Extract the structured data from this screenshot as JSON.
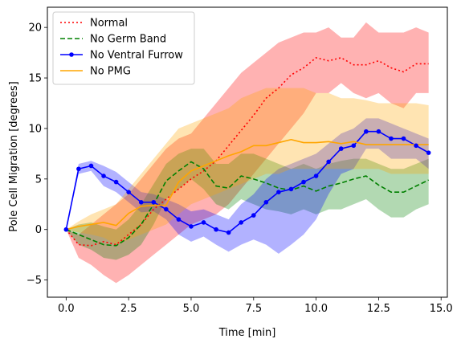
{
  "chart_data": {
    "type": "line",
    "title": "",
    "xlabel": "Time [min]",
    "ylabel": "Pole Cell Migration [degrees]",
    "xlim": [
      -0.75,
      15.25
    ],
    "ylim": [
      -6.7,
      22.0
    ],
    "xticks": [
      0.0,
      2.5,
      5.0,
      7.5,
      10.0,
      12.5,
      15.0
    ],
    "xtick_labels": [
      "0.0",
      "2.5",
      "5.0",
      "7.5",
      "10.0",
      "12.5",
      "15.0"
    ],
    "yticks": [
      -5,
      0,
      5,
      10,
      15,
      20
    ],
    "ytick_labels": [
      "−5",
      "0",
      "5",
      "10",
      "15",
      "20"
    ],
    "x": [
      0,
      0.5,
      1.0,
      1.5,
      2.0,
      2.5,
      3.0,
      3.5,
      4.0,
      4.5,
      5.0,
      5.5,
      6.0,
      6.5,
      7.0,
      7.5,
      8.0,
      8.5,
      9.0,
      9.5,
      10.0,
      10.5,
      11.0,
      11.5,
      12.0,
      12.5,
      13.0,
      13.5,
      14.0,
      14.5
    ],
    "legend_position": "top-left",
    "series": [
      {
        "name": "Normal",
        "color": "#ff0000",
        "style": "dotted",
        "marker": "none",
        "x": [
          0,
          0.5,
          1.0,
          1.5,
          2.0,
          2.5,
          3.0,
          3.5,
          4.0,
          4.5,
          5.0,
          5.5,
          6.0,
          6.5,
          7.0,
          7.5,
          8.0,
          8.5,
          9.0,
          9.5,
          10.0,
          10.5,
          11.0,
          11.5,
          12.0,
          12.5,
          13.0,
          13.5,
          14.0,
          14.5
        ],
        "values": [
          0,
          -1.5,
          -1.6,
          -1.2,
          -1.5,
          -0.5,
          0.5,
          2.0,
          3.0,
          4.0,
          5.0,
          5.8,
          6.8,
          8.3,
          9.8,
          11.3,
          13.0,
          14.0,
          15.3,
          16.0,
          17.0,
          16.7,
          17.0,
          16.3,
          16.3,
          16.7,
          16.0,
          15.6,
          16.4,
          16.4
        ],
        "band_upper": [
          0,
          -0.5,
          0.5,
          1.5,
          2.5,
          3.5,
          5.0,
          6.5,
          8.0,
          9.0,
          9.5,
          11.0,
          12.5,
          14.0,
          15.5,
          16.5,
          17.5,
          18.5,
          19.0,
          19.5,
          19.5,
          20.0,
          19.0,
          19.0,
          20.5,
          19.5,
          19.5,
          19.5,
          20.0,
          19.5
        ],
        "band_lower": [
          0,
          -2.8,
          -3.5,
          -4.5,
          -5.3,
          -4.5,
          -3.5,
          -2.5,
          -1.5,
          -0.5,
          0.5,
          1.0,
          1.5,
          2.5,
          4.0,
          5.5,
          7.0,
          8.5,
          10.0,
          11.5,
          13.5,
          13.5,
          14.5,
          13.5,
          13.0,
          13.5,
          12.5,
          12.0,
          13.5,
          13.5
        ],
        "band_color": "#ff0000",
        "band_opacity": 0.3
      },
      {
        "name": "No Germ Band",
        "color": "#008000",
        "style": "dashed",
        "marker": "none",
        "x": [
          0,
          0.5,
          1.0,
          1.5,
          2.0,
          2.5,
          3.0,
          3.5,
          4.0,
          4.5,
          5.0,
          5.5,
          6.0,
          6.5,
          7.0,
          7.5,
          8.0,
          8.5,
          9.0,
          9.5,
          10.0,
          10.5,
          11.0,
          11.5,
          12.0,
          12.5,
          13.0,
          13.5,
          14.0,
          14.5
        ],
        "values": [
          0,
          -0.5,
          -1.0,
          -1.5,
          -1.6,
          -0.8,
          0.5,
          2.5,
          4.8,
          5.8,
          6.7,
          6.0,
          4.3,
          4.1,
          5.3,
          5.0,
          4.6,
          4.1,
          3.9,
          4.3,
          3.8,
          4.3,
          4.6,
          5.0,
          5.3,
          4.4,
          3.7,
          3.7,
          4.3,
          4.9
        ],
        "band_upper": [
          0,
          0.5,
          0.7,
          0.3,
          0.0,
          1.0,
          2.5,
          4.5,
          6.5,
          7.5,
          8.0,
          8.0,
          6.5,
          6.5,
          7.5,
          7.5,
          7.0,
          6.5,
          6.0,
          6.5,
          6.0,
          6.5,
          6.8,
          7.0,
          7.0,
          6.5,
          6.0,
          6.0,
          6.5,
          7.0
        ],
        "band_lower": [
          0,
          -1.5,
          -2.0,
          -2.8,
          -3.0,
          -2.5,
          -1.5,
          0.5,
          3.0,
          4.0,
          5.0,
          4.0,
          2.5,
          2.0,
          3.0,
          2.5,
          2.0,
          1.8,
          1.5,
          2.0,
          1.5,
          2.0,
          2.0,
          2.5,
          3.0,
          2.0,
          1.2,
          1.2,
          2.0,
          2.5
        ],
        "band_color": "#008000",
        "band_opacity": 0.3
      },
      {
        "name": "No Ventral Furrow",
        "color": "#0000ff",
        "style": "solid",
        "marker": "circle",
        "x": [
          0,
          0.5,
          1.0,
          1.5,
          2.0,
          2.5,
          3.0,
          3.5,
          4.0,
          4.5,
          5.0,
          5.5,
          6.0,
          6.5,
          7.0,
          7.5,
          8.0,
          8.5,
          9.0,
          9.5,
          10.0,
          10.5,
          11.0,
          11.5,
          12.0,
          12.5,
          13.0,
          13.5,
          14.0,
          14.5
        ],
        "values": [
          0,
          6.0,
          6.3,
          5.3,
          4.7,
          3.7,
          2.7,
          2.7,
          2.0,
          1.0,
          0.3,
          0.7,
          0.0,
          -0.3,
          0.7,
          1.4,
          2.7,
          3.7,
          4.0,
          4.7,
          5.3,
          6.7,
          8.0,
          8.3,
          9.7,
          9.7,
          9.0,
          9.0,
          8.3,
          7.6
        ],
        "band_upper": [
          0,
          6.5,
          6.8,
          6.3,
          5.7,
          4.7,
          3.7,
          3.5,
          3.0,
          2.5,
          1.8,
          2.0,
          1.5,
          1.0,
          2.5,
          3.5,
          5.0,
          6.0,
          6.5,
          7.0,
          7.5,
          8.5,
          9.5,
          10.0,
          11.0,
          11.0,
          10.5,
          10.0,
          9.5,
          9.0
        ],
        "band_lower": [
          0,
          5.5,
          5.8,
          4.3,
          3.7,
          2.7,
          1.7,
          1.8,
          1.0,
          -0.5,
          -1.2,
          -0.7,
          -1.5,
          -2.2,
          -1.5,
          -1.0,
          -1.5,
          -2.4,
          -1.5,
          -0.5,
          1.0,
          3.5,
          5.5,
          6.0,
          8.0,
          8.0,
          7.0,
          7.0,
          7.0,
          6.0
        ],
        "band_color": "#0000ff",
        "band_opacity": 0.3
      },
      {
        "name": "No PMG",
        "color": "#ffa500",
        "style": "solid",
        "marker": "none",
        "x": [
          0,
          0.5,
          1.0,
          1.5,
          2.0,
          2.5,
          3.0,
          3.5,
          4.0,
          4.5,
          5.0,
          5.5,
          6.0,
          6.5,
          7.0,
          7.5,
          8.0,
          8.5,
          9.0,
          9.5,
          10.0,
          10.5,
          11.0,
          11.5,
          12.0,
          12.5,
          13.0,
          13.5,
          14.0,
          14.5
        ],
        "values": [
          0,
          0.3,
          0.5,
          0.7,
          0.4,
          1.6,
          2.3,
          2.4,
          2.4,
          4.7,
          5.8,
          6.3,
          6.8,
          7.3,
          7.7,
          8.3,
          8.3,
          8.6,
          8.9,
          8.6,
          8.6,
          8.7,
          8.5,
          8.7,
          8.4,
          8.4,
          8.4,
          8.4,
          8.4,
          8.4
        ],
        "band_upper": [
          0,
          0.8,
          1.5,
          2.0,
          2.5,
          4.0,
          5.5,
          7.0,
          8.5,
          10.0,
          10.5,
          11.0,
          11.5,
          12.0,
          13.0,
          13.5,
          14.0,
          14.0,
          14.0,
          14.0,
          13.5,
          13.5,
          13.0,
          13.0,
          12.8,
          12.5,
          12.5,
          12.5,
          12.5,
          12.3
        ],
        "band_lower": [
          0,
          -0.3,
          -0.5,
          -0.8,
          -1.5,
          -1.0,
          -0.5,
          0.0,
          0.5,
          1.5,
          2.5,
          3.0,
          3.5,
          4.0,
          4.5,
          5.0,
          5.5,
          5.5,
          6.0,
          6.0,
          6.0,
          6.0,
          6.0,
          6.0,
          6.0,
          6.0,
          5.5,
          5.5,
          5.5,
          5.5
        ],
        "band_color": "#ffa500",
        "band_opacity": 0.3
      }
    ]
  }
}
